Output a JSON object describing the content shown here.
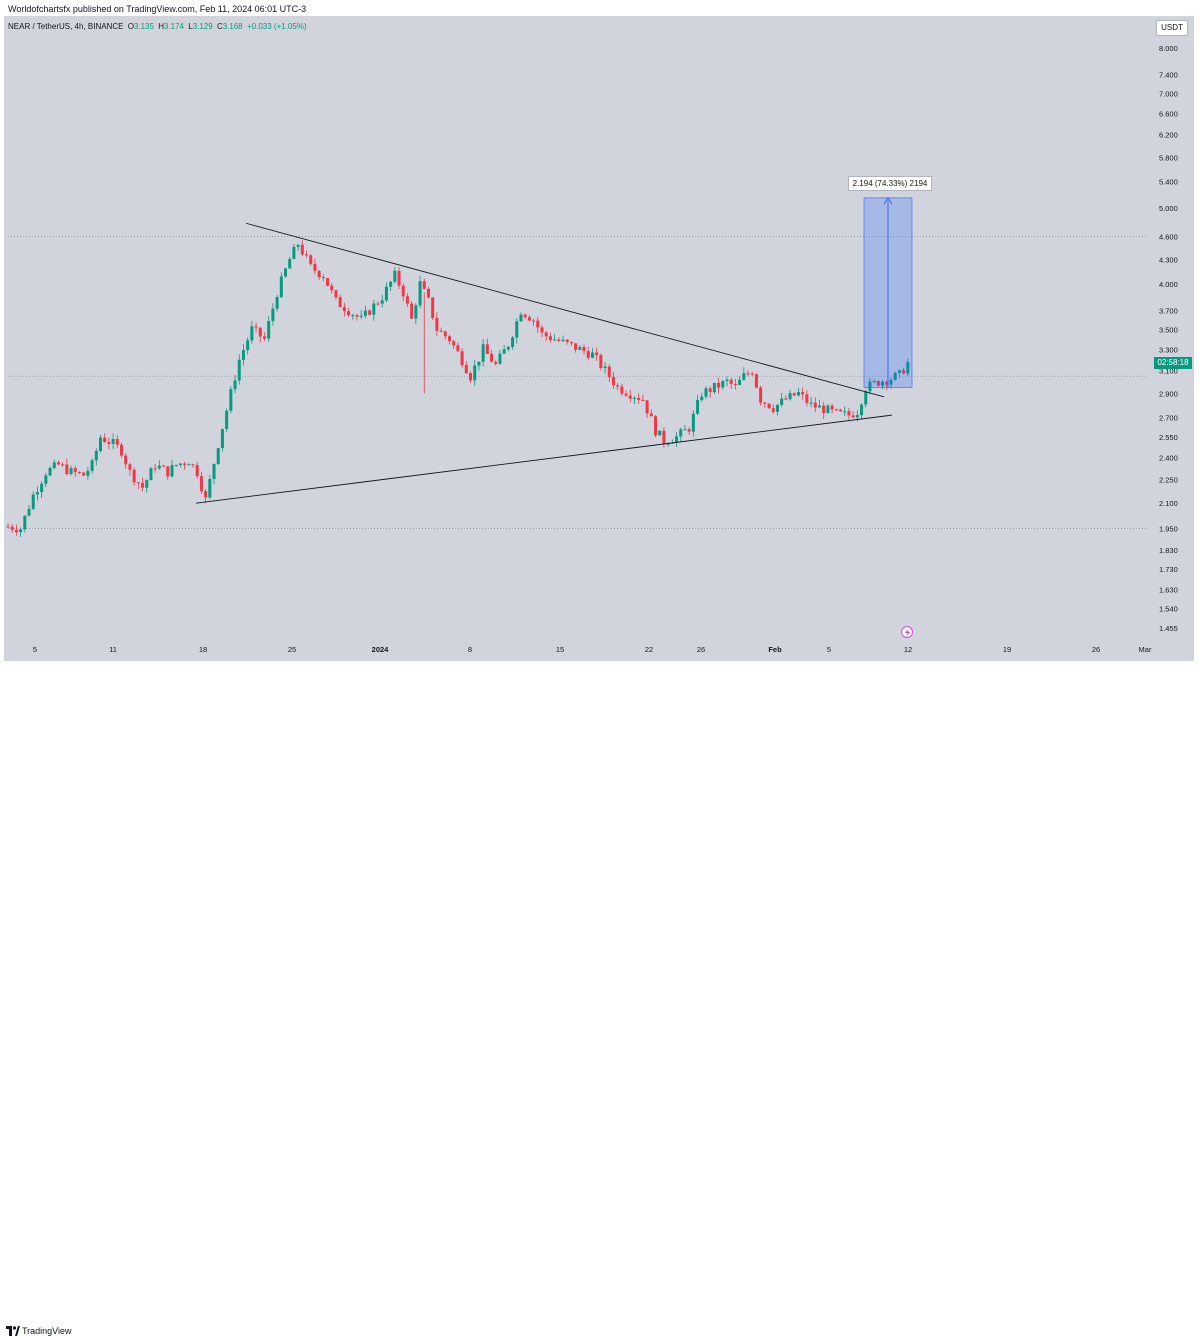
{
  "header": {
    "published": "Worldofchartsfx published on TradingView.com, Feb 11, 2024 06:01 UTC-3"
  },
  "legend": {
    "symbol": "NEAR / TetherUS, 4h, BINANCE",
    "open_label": "O",
    "open": "3.135",
    "high_label": "H",
    "high": "3.174",
    "low_label": "L",
    "low": "3.129",
    "close_label": "C",
    "close": "3.168",
    "change": "+0.033 (+1.05%)"
  },
  "price_axis": {
    "currency": "USDT",
    "current_price_countdown": "02:58:18"
  },
  "measure": {
    "label": "2.194 (74.33%) 2194"
  },
  "footer": {
    "brand": "TradingView"
  },
  "colors": {
    "background": "#d1d4dc",
    "up": "#089981",
    "down": "#f23645",
    "trendline": "#131722",
    "measure_fill": "#2962ff",
    "grid": "#b2b5be"
  },
  "icons": {
    "logo": "tradingview-logo-icon",
    "event": "lightning-event-icon"
  },
  "chart_data": {
    "type": "candlestick",
    "scale": "log",
    "interval": "4h",
    "y_ticks": [
      "8.000",
      "7.400",
      "7.000",
      "6.600",
      "6.200",
      "5.800",
      "5.400",
      "5.000",
      "4.600",
      "4.300",
      "4.000",
      "3.700",
      "3.500",
      "3.300",
      "3.100",
      "2.900",
      "2.700",
      "2.550",
      "2.400",
      "2.250",
      "2.100",
      "1.950",
      "1.830",
      "1.730",
      "1.630",
      "1.540",
      "1.455"
    ],
    "x_ticks": [
      "5",
      "11",
      "18",
      "25",
      "2024",
      "8",
      "15",
      "22",
      "26",
      "Feb",
      "5",
      "12",
      "19",
      "26",
      "Mar"
    ],
    "horizontal_levels": [
      4.6,
      3.05,
      1.95
    ],
    "path_points": [
      [
        0,
        1.96
      ],
      [
        3,
        1.95
      ],
      [
        6,
        2.15
      ],
      [
        9,
        2.3
      ],
      [
        12,
        2.35
      ],
      [
        15,
        2.3
      ],
      [
        18,
        2.28
      ],
      [
        20,
        2.35
      ],
      [
        22,
        2.55
      ],
      [
        25,
        2.5
      ],
      [
        27,
        2.45
      ],
      [
        29,
        2.3
      ],
      [
        32,
        2.2
      ],
      [
        35,
        2.35
      ],
      [
        38,
        2.3
      ],
      [
        40,
        2.35
      ],
      [
        43,
        2.38
      ],
      [
        45,
        2.3
      ],
      [
        47,
        2.12
      ],
      [
        50,
        2.5
      ],
      [
        53,
        2.9
      ],
      [
        55,
        3.2
      ],
      [
        58,
        3.5
      ],
      [
        61,
        3.4
      ],
      [
        64,
        3.9
      ],
      [
        67,
        4.3
      ],
      [
        69,
        4.5
      ],
      [
        72,
        4.2
      ],
      [
        75,
        4.1
      ],
      [
        78,
        3.8
      ],
      [
        81,
        3.7
      ],
      [
        84,
        3.6
      ],
      [
        87,
        3.75
      ],
      [
        89,
        3.85
      ],
      [
        92,
        4.1
      ],
      [
        94,
        3.9
      ],
      [
        96,
        3.6
      ],
      [
        98,
        4.0
      ],
      [
        100,
        3.8
      ],
      [
        102,
        3.5
      ],
      [
        105,
        3.4
      ],
      [
        108,
        3.2
      ],
      [
        110,
        3.05
      ],
      [
        113,
        3.3
      ],
      [
        116,
        3.15
      ],
      [
        119,
        3.35
      ],
      [
        122,
        3.7
      ],
      [
        125,
        3.6
      ],
      [
        127,
        3.45
      ],
      [
        130,
        3.4
      ],
      [
        133,
        3.35
      ],
      [
        136,
        3.3
      ],
      [
        139,
        3.25
      ],
      [
        142,
        3.1
      ],
      [
        145,
        2.95
      ],
      [
        148,
        2.9
      ],
      [
        151,
        2.85
      ],
      [
        154,
        2.6
      ],
      [
        156,
        2.52
      ],
      [
        159,
        2.55
      ],
      [
        162,
        2.62
      ],
      [
        165,
        2.9
      ],
      [
        168,
        2.95
      ],
      [
        171,
        3.0
      ],
      [
        173,
        2.95
      ],
      [
        175,
        3.05
      ],
      [
        177,
        3.1
      ],
      [
        179,
        2.85
      ],
      [
        182,
        2.78
      ],
      [
        185,
        2.85
      ],
      [
        188,
        2.9
      ],
      [
        191,
        2.8
      ],
      [
        194,
        2.77
      ],
      [
        197,
        2.73
      ],
      [
        200,
        2.72
      ],
      [
        202,
        2.75
      ],
      [
        204,
        2.95
      ],
      [
        207,
        3.0
      ],
      [
        210,
        3.03
      ],
      [
        212,
        3.06
      ],
      [
        214,
        3.17
      ]
    ],
    "triangle_upper": [
      [
        4.78,
        4.78
      ],
      [
        2.87,
        2.87
      ]
    ],
    "triangle_lower": [
      [
        2.1,
        2.1
      ],
      [
        2.72,
        2.72
      ]
    ],
    "measure_from": 2.95,
    "measure_to": 5.15
  }
}
